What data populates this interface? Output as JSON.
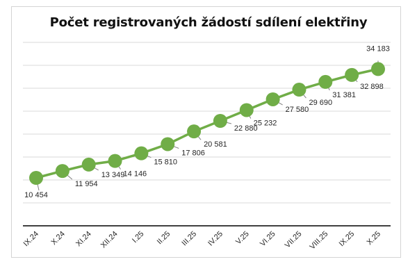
{
  "chart_data": {
    "type": "line",
    "title": "Počet registrovaných žádostí sdílení elektřiny",
    "xlabel": "",
    "ylabel": "",
    "categories": [
      "IX.24",
      "X.24",
      "XI.24",
      "XII.24",
      "I.25",
      "II.25",
      "III.25",
      "IV.25",
      "V.25",
      "VI.25",
      "VII.25",
      "VIII.25",
      "IX.25",
      "X.25"
    ],
    "values": [
      10454,
      11954,
      13349,
      14146,
      15810,
      17806,
      20581,
      22880,
      25232,
      27580,
      29690,
      31381,
      32898,
      34183
    ],
    "value_labels": [
      "10 454",
      "11 954",
      "13 349",
      "14 146",
      "15 810",
      "17 806",
      "20 581",
      "22 880",
      "25 232",
      "27 580",
      "29 690",
      "31 381",
      "32 898",
      "34 183"
    ],
    "ylim": [
      0,
      40000
    ],
    "y_gridline_step": 5000,
    "y_axis_tick_labels_visible": false,
    "grid": true,
    "legend": "none",
    "series_color": "#70ad47",
    "marker": "circle"
  }
}
